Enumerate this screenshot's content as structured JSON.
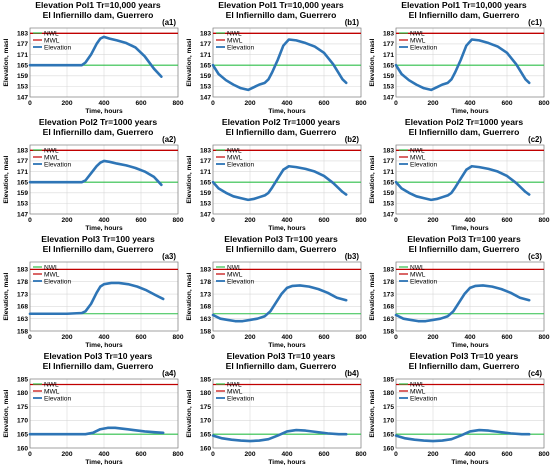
{
  "chart_data": [
    {
      "id": "a1",
      "type": "line",
      "title_line1": "Elevation Pol1 Tr=10,000 years",
      "title_line2": "El Infiernillo dam, Guerrero",
      "panel_label": "(a1)",
      "xlabel": "Time, hours",
      "ylabel": "Elevation, masl",
      "xlim": [
        0,
        800
      ],
      "xticks": [
        0,
        200,
        400,
        600,
        800
      ],
      "ylim": [
        147,
        186
      ],
      "yticks": [
        147,
        153,
        159,
        165,
        171,
        177,
        183
      ],
      "nwl": 165,
      "mwl": 183,
      "legend": [
        "NWL",
        "MWL",
        "Elevation"
      ],
      "legend_position": "top-left",
      "elevation": {
        "x": [
          0,
          100,
          200,
          280,
          300,
          330,
          360,
          380,
          400,
          430,
          470,
          520,
          570,
          620,
          670,
          710
        ],
        "y": [
          165,
          165,
          165,
          165,
          166.5,
          171,
          177,
          180,
          181,
          180,
          179,
          177.5,
          175,
          170,
          163,
          158.5
        ]
      }
    },
    {
      "id": "b1",
      "type": "line",
      "title_line1": "Elevation Pol1 Tr=10,000 years",
      "title_line2": "El Infiernillo dam, Guerrero",
      "panel_label": "(b1)",
      "xlabel": "Time, hours",
      "ylabel": "Elevation, masl",
      "xlim": [
        0,
        800
      ],
      "xticks": [
        0,
        200,
        400,
        600,
        800
      ],
      "ylim": [
        147,
        186
      ],
      "yticks": [
        147,
        153,
        159,
        165,
        171,
        177,
        183
      ],
      "nwl": 165,
      "mwl": 183,
      "legend": [
        "NWL",
        "MWL",
        "Elevation"
      ],
      "legend_position": "top-left",
      "elevation": {
        "x": [
          0,
          30,
          70,
          110,
          150,
          190,
          220,
          250,
          280,
          300,
          320,
          350,
          380,
          410,
          450,
          500,
          550,
          600,
          650,
          700,
          720
        ],
        "y": [
          165,
          160,
          156.5,
          154,
          152,
          151,
          152.5,
          154,
          155,
          157,
          161,
          168,
          176,
          179.5,
          179,
          177.5,
          175.5,
          172,
          165.5,
          157,
          155
        ]
      }
    },
    {
      "id": "c1",
      "type": "line",
      "title_line1": "Elevation Pol1 Tr=10,000 years",
      "title_line2": "El Infiernillo dam, Guerrero",
      "panel_label": "(c1)",
      "xlabel": "Time, hours",
      "ylabel": "Elevation, masl",
      "xlim": [
        0,
        800
      ],
      "xticks": [
        0,
        200,
        400,
        600,
        800
      ],
      "ylim": [
        147,
        186
      ],
      "yticks": [
        147,
        153,
        159,
        165,
        171,
        177,
        183
      ],
      "nwl": 165,
      "mwl": 183,
      "legend": [
        "NWL",
        "MWL",
        "Elevation"
      ],
      "legend_position": "top-left",
      "elevation": {
        "x": [
          0,
          30,
          70,
          110,
          150,
          190,
          220,
          250,
          280,
          300,
          320,
          350,
          380,
          410,
          450,
          500,
          550,
          600,
          650,
          700,
          720
        ],
        "y": [
          165,
          160,
          156.5,
          154,
          152,
          151,
          152.5,
          154,
          155,
          157,
          161,
          168,
          176,
          179.5,
          179,
          177.5,
          175.5,
          172,
          165.5,
          157,
          155
        ]
      }
    },
    {
      "id": "a2",
      "type": "line",
      "title_line1": "Elevation Pol2 Tr=1000 years",
      "title_line2": "El Infiernillo dam, Guerrero",
      "panel_label": "(a2)",
      "xlabel": "Time, hours",
      "ylabel": "Elevation, masl",
      "xlim": [
        0,
        800
      ],
      "xticks": [
        0,
        200,
        400,
        600,
        800
      ],
      "ylim": [
        147,
        186
      ],
      "yticks": [
        147,
        153,
        159,
        165,
        171,
        177,
        183
      ],
      "nwl": 165,
      "mwl": 183,
      "legend": [
        "NWL",
        "MWL",
        "Elevation"
      ],
      "legend_position": "top-left",
      "elevation": {
        "x": [
          0,
          100,
          200,
          280,
          300,
          330,
          360,
          380,
          400,
          430,
          470,
          520,
          570,
          620,
          670,
          710
        ],
        "y": [
          165,
          165,
          165,
          165,
          166,
          170,
          174,
          176,
          177,
          176.5,
          175.5,
          174.5,
          173,
          171,
          168,
          163.5
        ]
      }
    },
    {
      "id": "b2",
      "type": "line",
      "title_line1": "Elevation Pol2 Tr=1000 years",
      "title_line2": "El Infiernillo dam, Guerrero",
      "panel_label": "(b2)",
      "xlabel": "Time, hours",
      "ylabel": "Elevation, masl",
      "xlim": [
        0,
        800
      ],
      "xticks": [
        0,
        200,
        400,
        600,
        800
      ],
      "ylim": [
        147,
        186
      ],
      "yticks": [
        147,
        153,
        159,
        165,
        171,
        177,
        183
      ],
      "nwl": 165,
      "mwl": 183,
      "legend": [
        "NWL",
        "MWL",
        "Elevation"
      ],
      "legend_position": "top-left",
      "elevation": {
        "x": [
          0,
          30,
          70,
          110,
          150,
          190,
          220,
          250,
          280,
          300,
          320,
          350,
          380,
          410,
          450,
          500,
          550,
          600,
          650,
          700,
          720
        ],
        "y": [
          165,
          161.5,
          159,
          157,
          156,
          155,
          155.5,
          156.5,
          157.5,
          159,
          162,
          167,
          172,
          174,
          173.5,
          172.5,
          171,
          168.5,
          164.5,
          159.5,
          158
        ]
      }
    },
    {
      "id": "c2",
      "type": "line",
      "title_line1": "Elevation Pol2 Tr=1000 years",
      "title_line2": "El Infiernillo dam, Guerrero",
      "panel_label": "(c2)",
      "xlabel": "Time, hours",
      "ylabel": "Elevation, masl",
      "xlim": [
        0,
        800
      ],
      "xticks": [
        0,
        200,
        400,
        600,
        800
      ],
      "ylim": [
        147,
        186
      ],
      "yticks": [
        147,
        153,
        159,
        165,
        171,
        177,
        183
      ],
      "nwl": 165,
      "mwl": 183,
      "legend": [
        "NWL",
        "MWL",
        "Elevation"
      ],
      "legend_position": "top-left",
      "elevation": {
        "x": [
          0,
          30,
          70,
          110,
          150,
          190,
          220,
          250,
          280,
          300,
          320,
          350,
          380,
          410,
          450,
          500,
          550,
          600,
          650,
          700,
          720
        ],
        "y": [
          165,
          161.5,
          159,
          157,
          156,
          155,
          155.5,
          156.5,
          157.5,
          159,
          162,
          167,
          172,
          174,
          173.5,
          172.5,
          171,
          168.5,
          164.5,
          159.5,
          158
        ]
      }
    },
    {
      "id": "a3",
      "type": "line",
      "title_line1": "Elevation Pol3 Tr=100 years",
      "title_line2": "El Infiernillo dam, Guerrero",
      "panel_label": "(a3)",
      "xlabel": "Time, hours",
      "ylabel": "Elevation, masl",
      "xlim": [
        0,
        800
      ],
      "xticks": [
        0,
        200,
        400,
        600,
        800
      ],
      "ylim": [
        158,
        186
      ],
      "yticks": [
        158,
        163,
        168,
        173,
        178,
        183
      ],
      "nwl": 165,
      "mwl": 183,
      "legend": [
        "NWL",
        "MWL",
        "Elevation"
      ],
      "legend_position": "top-left",
      "elevation": {
        "x": [
          0,
          100,
          200,
          280,
          300,
          330,
          360,
          380,
          400,
          440,
          480,
          530,
          580,
          630,
          680,
          720
        ],
        "y": [
          165,
          165,
          165,
          165.3,
          166,
          169,
          173.5,
          176,
          177,
          177.5,
          177.5,
          177,
          176,
          174.5,
          172.5,
          171
        ]
      }
    },
    {
      "id": "b3",
      "type": "line",
      "title_line1": "Elevation Pol3 Tr=100 years",
      "title_line2": "El Infiernillo dam, Guerrero",
      "panel_label": "(b3)",
      "xlabel": "Time, hours",
      "ylabel": "Elevation, masl",
      "xlim": [
        0,
        800
      ],
      "xticks": [
        0,
        200,
        400,
        600,
        800
      ],
      "ylim": [
        158,
        186
      ],
      "yticks": [
        158,
        163,
        168,
        173,
        178,
        183
      ],
      "nwl": 165,
      "mwl": 183,
      "legend": [
        "NWL",
        "MWL",
        "Elevation"
      ],
      "legend_position": "top-left",
      "elevation": {
        "x": [
          0,
          40,
          80,
          120,
          160,
          200,
          240,
          280,
          310,
          340,
          370,
          400,
          430,
          470,
          520,
          570,
          620,
          670,
          720
        ],
        "y": [
          164.5,
          163,
          162.5,
          162,
          162,
          162.5,
          163,
          164,
          166,
          169.5,
          173,
          175.5,
          176.3,
          176.5,
          176,
          175,
          173.5,
          171.5,
          170.5
        ]
      }
    },
    {
      "id": "c3",
      "type": "line",
      "title_line1": "Elevation Pol3 Tr=100 years",
      "title_line2": "El Infiernillo dam, Guerrero",
      "panel_label": "(c3)",
      "xlabel": "Time, hours",
      "ylabel": "Elevation, masl",
      "xlim": [
        0,
        800
      ],
      "xticks": [
        0,
        200,
        400,
        600,
        800
      ],
      "ylim": [
        158,
        186
      ],
      "yticks": [
        158,
        163,
        168,
        173,
        178,
        183
      ],
      "nwl": 165,
      "mwl": 183,
      "legend": [
        "NWL",
        "MWL",
        "Elevation"
      ],
      "legend_position": "top-left",
      "elevation": {
        "x": [
          0,
          40,
          80,
          120,
          160,
          200,
          240,
          280,
          310,
          340,
          370,
          400,
          430,
          470,
          520,
          570,
          620,
          670,
          720
        ],
        "y": [
          164.5,
          163,
          162.5,
          162,
          162,
          162.5,
          163,
          164,
          166,
          169.5,
          173,
          175.5,
          176.3,
          176.5,
          176,
          175,
          173.5,
          171.5,
          170.5
        ]
      }
    },
    {
      "id": "a4",
      "type": "line",
      "title_line1": "Elevation Pol3 Tr=10 years",
      "title_line2": "El Infiernillo dam, Guerrero",
      "panel_label": "(a4)",
      "xlabel": "Time, hours",
      "ylabel": "Elevation, masl",
      "xlim": [
        0,
        800
      ],
      "xticks": [
        0,
        200,
        400,
        600,
        800
      ],
      "ylim": [
        160,
        185
      ],
      "yticks": [
        160,
        165,
        170,
        175,
        180,
        185
      ],
      "nwl": 165,
      "mwl": 183,
      "legend": [
        "NWL",
        "MWL",
        "Elevation"
      ],
      "legend_position": "top-left",
      "elevation": {
        "x": [
          0,
          100,
          200,
          300,
          340,
          380,
          420,
          460,
          500,
          560,
          620,
          680,
          720
        ],
        "y": [
          165,
          165,
          165,
          165,
          165.5,
          166.8,
          167.3,
          167.3,
          167,
          166.5,
          166,
          165.7,
          165.5
        ]
      }
    },
    {
      "id": "b4",
      "type": "line",
      "title_line1": "Elevation Pol3 Tr=10 years",
      "title_line2": "El Infiernillo dam, Guerrero",
      "panel_label": "(b4)",
      "xlabel": "Time, hours",
      "ylabel": "Elevation, masl",
      "xlim": [
        0,
        800
      ],
      "xticks": [
        0,
        200,
        400,
        600,
        800
      ],
      "ylim": [
        160,
        185
      ],
      "yticks": [
        160,
        165,
        170,
        175,
        180,
        185
      ],
      "nwl": 165,
      "mwl": 183,
      "legend": [
        "NWL",
        "MWL",
        "Elevation"
      ],
      "legend_position": "top-left",
      "elevation": {
        "x": [
          0,
          50,
          100,
          150,
          200,
          250,
          300,
          350,
          400,
          450,
          500,
          560,
          620,
          680,
          720
        ],
        "y": [
          164.5,
          163.5,
          163,
          162.7,
          162.5,
          162.7,
          163.2,
          164.5,
          166,
          166.5,
          166.3,
          165.8,
          165.3,
          165,
          165
        ]
      }
    },
    {
      "id": "c4",
      "type": "line",
      "title_line1": "Elevation Pol3 Tr=10 years",
      "title_line2": "El Infiernillo dam, Guerrero",
      "panel_label": "(c4)",
      "xlabel": "Time, hours",
      "ylabel": "Elevation, masl",
      "xlim": [
        0,
        800
      ],
      "xticks": [
        0,
        200,
        400,
        600,
        800
      ],
      "ylim": [
        160,
        185
      ],
      "yticks": [
        160,
        165,
        170,
        175,
        180,
        185
      ],
      "nwl": 165,
      "mwl": 183,
      "legend": [
        "NWL",
        "MWL",
        "Elevation"
      ],
      "legend_position": "top-left",
      "elevation": {
        "x": [
          0,
          50,
          100,
          150,
          200,
          250,
          300,
          350,
          400,
          450,
          500,
          560,
          620,
          680,
          720
        ],
        "y": [
          164.5,
          163.5,
          163,
          162.7,
          162.5,
          162.7,
          163.2,
          164.5,
          166,
          166.5,
          166.3,
          165.8,
          165.3,
          165,
          165
        ]
      }
    }
  ],
  "colors": {
    "nwl": "#2fbf4a",
    "mwl": "#c00000",
    "elevation": "#2e75b6",
    "grid": "#d9d9d9",
    "axis": "#808080"
  }
}
